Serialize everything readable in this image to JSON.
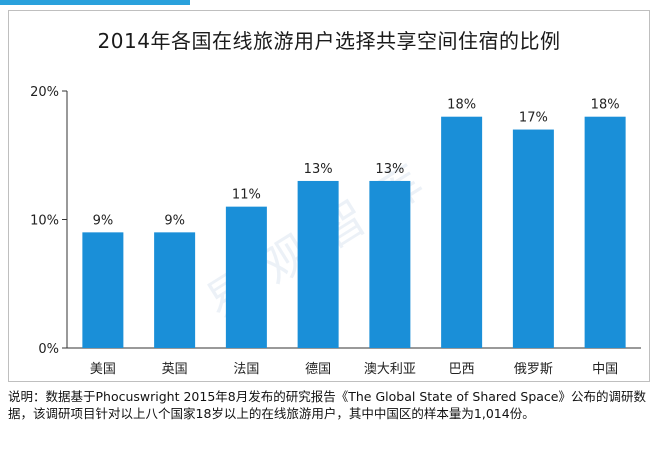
{
  "colors": {
    "bar": "#1a8fd8",
    "accent_strip": "#2aa1dc",
    "axis": "#333333"
  },
  "chart_data": {
    "type": "bar",
    "title": "2014年各国在线旅游用户选择共享空间住宿的比例",
    "categories": [
      "美国",
      "英国",
      "法国",
      "德国",
      "澳大利亚",
      "巴西",
      "俄罗斯",
      "中国"
    ],
    "values": [
      9,
      9,
      11,
      13,
      13,
      18,
      17,
      18
    ],
    "data_labels": [
      "9%",
      "9%",
      "11%",
      "13%",
      "13%",
      "18%",
      "17%",
      "18%"
    ],
    "yticks": [
      "0%",
      "10%",
      "20%"
    ],
    "ylim": [
      0,
      20
    ],
    "grid": false
  },
  "watermark": "易观智库",
  "note": "说明：数据基于Phocuswright 2015年8月发布的研究报告《The Global State of Shared Space》公布的调研数据，该调研项目针对以上八个国家18岁以上的在线旅游用户，其中中国区的样本量为1,014份。"
}
